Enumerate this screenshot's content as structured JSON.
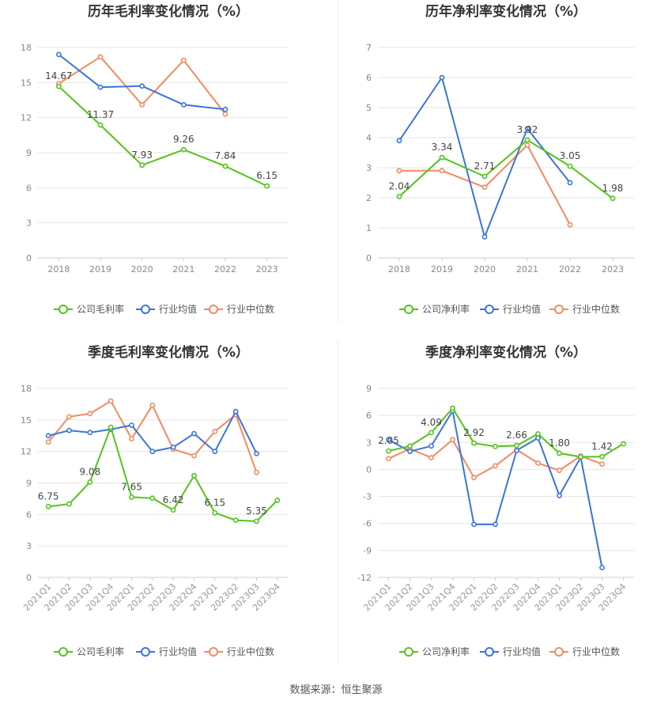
{
  "source": "数据来源：恒生聚源",
  "colors": {
    "company": "#52c41a",
    "avg": "#3b74db",
    "median": "#f5895f"
  },
  "chart_data": [
    {
      "type": "line",
      "title": "历年毛利率变化情况（%）",
      "categories": [
        "2018",
        "2019",
        "2020",
        "2021",
        "2022",
        "2023"
      ],
      "ylim": [
        0,
        18
      ],
      "yticks": [
        0,
        3,
        6,
        9,
        12,
        15,
        18
      ],
      "series": [
        {
          "name": "公司毛利率",
          "values": [
            14.67,
            11.37,
            7.93,
            9.26,
            7.84,
            6.15
          ],
          "labels": [
            "14.67",
            "11.37",
            "7.93",
            "9.26",
            "7.84",
            "6.15"
          ]
        },
        {
          "name": "行业均值",
          "values": [
            17.4,
            14.6,
            14.7,
            13.1,
            12.7,
            null
          ]
        },
        {
          "name": "行业中位数",
          "values": [
            14.9,
            17.2,
            13.1,
            16.9,
            12.3,
            null
          ]
        }
      ]
    },
    {
      "type": "line",
      "title": "历年净利率变化情况（%）",
      "categories": [
        "2018",
        "2019",
        "2020",
        "2021",
        "2022",
        "2023"
      ],
      "ylim": [
        0,
        7
      ],
      "yticks": [
        0,
        1,
        2,
        3,
        4,
        5,
        6,
        7
      ],
      "series": [
        {
          "name": "公司净利率",
          "values": [
            2.04,
            3.34,
            2.71,
            3.92,
            3.05,
            1.98
          ],
          "labels": [
            "2.04",
            "3.34",
            "2.71",
            "3.92",
            "3.05",
            "1.98"
          ]
        },
        {
          "name": "行业均值",
          "values": [
            3.9,
            6.0,
            0.7,
            4.3,
            2.5,
            null
          ]
        },
        {
          "name": "行业中位数",
          "values": [
            2.9,
            2.9,
            2.35,
            3.75,
            1.1,
            null
          ]
        }
      ]
    },
    {
      "type": "line",
      "title": "季度毛利率变化情况（%）",
      "categories": [
        "2021Q1",
        "2021Q2",
        "2021Q3",
        "2021Q4",
        "2022Q1",
        "2022Q2",
        "2022Q3",
        "2022Q4",
        "2023Q1",
        "2023Q2",
        "2023Q3",
        "2023Q4"
      ],
      "ylim": [
        0,
        18
      ],
      "yticks": [
        0,
        3,
        6,
        9,
        12,
        15,
        18
      ],
      "series": [
        {
          "name": "公司毛利率",
          "values": [
            6.75,
            7.0,
            9.08,
            14.3,
            7.65,
            7.55,
            6.42,
            9.7,
            6.15,
            5.45,
            5.35,
            7.35
          ],
          "labels": [
            "6.75",
            "",
            "9.08",
            "",
            "7.65",
            "",
            "6.42",
            "",
            "6.15",
            "",
            "5.35",
            ""
          ]
        },
        {
          "name": "行业均值",
          "values": [
            13.5,
            14.0,
            13.8,
            14.1,
            14.5,
            12.0,
            12.4,
            13.7,
            12.0,
            15.8,
            11.8,
            null
          ]
        },
        {
          "name": "行业中位数",
          "values": [
            12.9,
            15.3,
            15.6,
            16.8,
            13.2,
            16.4,
            12.2,
            11.6,
            13.9,
            15.5,
            10.0,
            null
          ]
        }
      ]
    },
    {
      "type": "line",
      "title": "季度净利率变化情况（%）",
      "categories": [
        "2021Q1",
        "2021Q2",
        "2021Q3",
        "2021Q4",
        "2022Q1",
        "2022Q2",
        "2022Q3",
        "2022Q4",
        "2023Q1",
        "2023Q2",
        "2023Q3",
        "2023Q4"
      ],
      "ylim": [
        -12,
        9
      ],
      "yticks": [
        -12,
        -9,
        -6,
        -3,
        0,
        3,
        6,
        9
      ],
      "series": [
        {
          "name": "公司净利率",
          "values": [
            2.05,
            2.6,
            4.09,
            6.8,
            2.92,
            2.55,
            2.66,
            3.95,
            1.8,
            1.4,
            1.42,
            2.85
          ],
          "labels": [
            "2.05",
            "",
            "4.09",
            "",
            "2.92",
            "",
            "2.66",
            "",
            "1.80",
            "",
            "1.42",
            ""
          ]
        },
        {
          "name": "行业均值",
          "values": [
            3.3,
            2.0,
            2.6,
            6.5,
            -6.1,
            -6.1,
            2.1,
            3.5,
            -2.9,
            1.35,
            -10.9,
            null
          ]
        },
        {
          "name": "行业中位数",
          "values": [
            1.2,
            2.3,
            1.3,
            3.3,
            -0.9,
            0.4,
            2.2,
            0.7,
            -0.1,
            1.5,
            0.6,
            null
          ]
        }
      ]
    }
  ]
}
